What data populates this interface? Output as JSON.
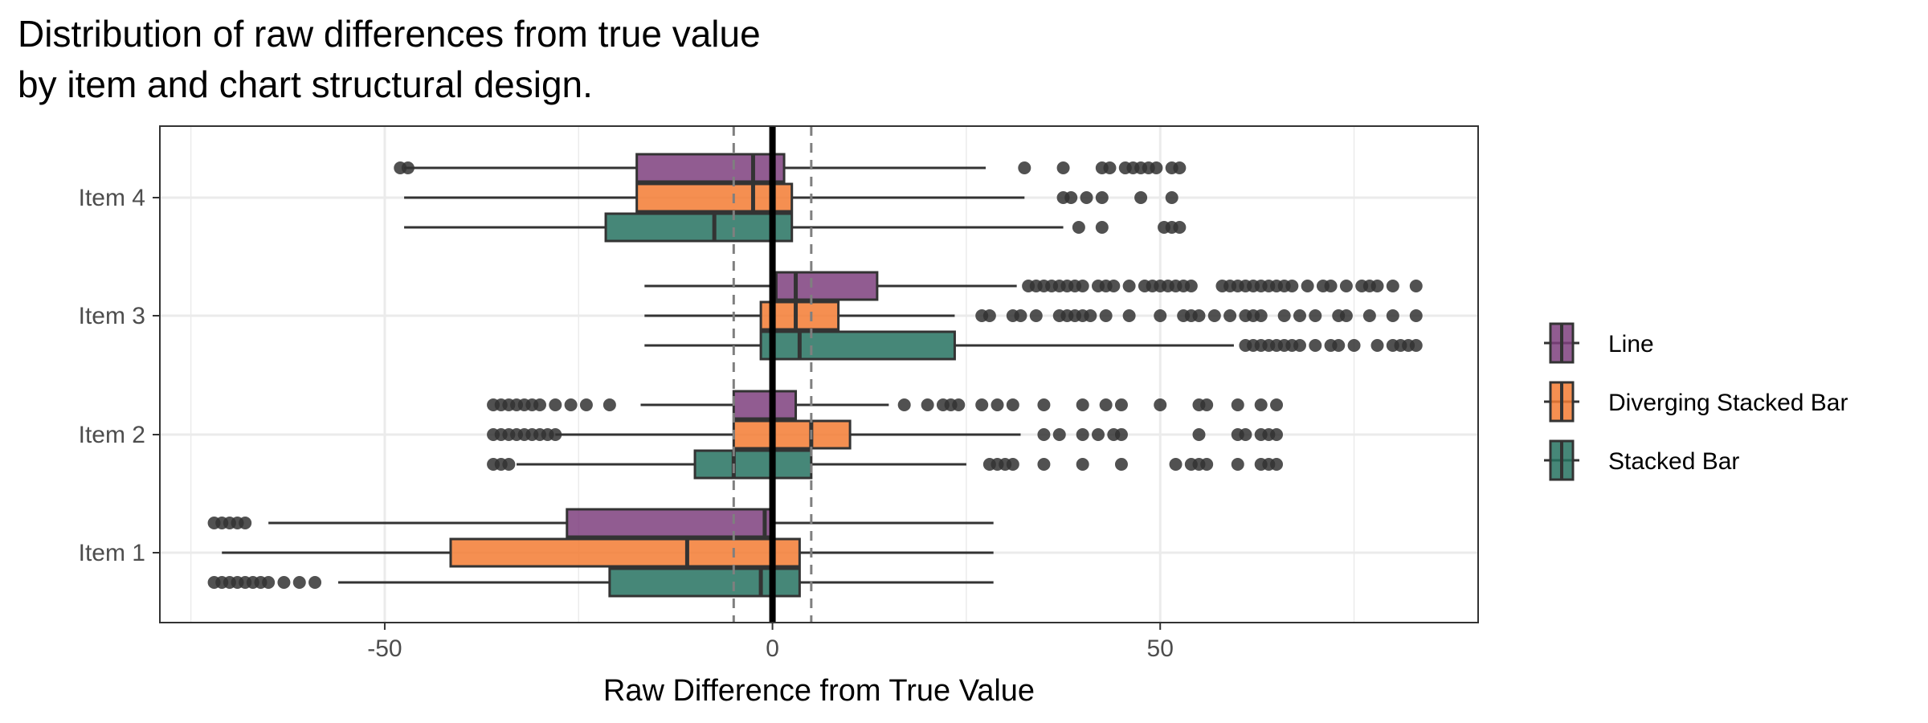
{
  "chart_data": {
    "type": "boxplot",
    "orientation": "horizontal",
    "title": [
      "Distribution of raw differences from true value",
      "by item and chart structural design."
    ],
    "xlabel": "Raw Difference from True Value",
    "ylabel": "",
    "xlim": [
      -79,
      91
    ],
    "x_ticks": [
      -50,
      0,
      50
    ],
    "x_tick_labels": [
      "-50",
      "0",
      "50"
    ],
    "grid": true,
    "legend_position": "right",
    "reference_lines": [
      {
        "x": 0,
        "style": "solid"
      },
      {
        "x": -5,
        "style": "dashed"
      },
      {
        "x": 5,
        "style": "dashed"
      }
    ],
    "categories": [
      "Item 1",
      "Item 2",
      "Item 3",
      "Item 4"
    ],
    "series": [
      {
        "name": "Line",
        "color": "#7e3f7e"
      },
      {
        "name": "Diverging Stacked Bar",
        "color": "#f37b32"
      },
      {
        "name": "Stacked Bar",
        "color": "#267260"
      }
    ],
    "boxes": [
      {
        "item": "Item 1",
        "series": "Line",
        "whisker_low": -65,
        "q1": -26.5,
        "median": -1,
        "q3": 0,
        "whisker_high": 28.5,
        "outliers": [
          -72,
          -71,
          -70,
          -69,
          -68
        ]
      },
      {
        "item": "Item 1",
        "series": "Diverging Stacked Bar",
        "whisker_low": -71,
        "q1": -41.5,
        "median": -11,
        "q3": 3.5,
        "whisker_high": 28.5,
        "outliers": []
      },
      {
        "item": "Item 1",
        "series": "Stacked Bar",
        "whisker_low": -56,
        "q1": -21,
        "median": -1.5,
        "q3": 3.5,
        "whisker_high": 28.5,
        "outliers": [
          -72,
          -71,
          -70,
          -69,
          -68,
          -67,
          -66,
          -65,
          -63,
          -61,
          -59
        ]
      },
      {
        "item": "Item 2",
        "series": "Line",
        "whisker_low": -17,
        "q1": -5,
        "median": 0,
        "q3": 3,
        "whisker_high": 15,
        "outliers": [
          -36,
          -35,
          -34,
          -33,
          -32,
          -31,
          -30,
          -28,
          -26,
          -24,
          -21,
          17,
          20,
          22,
          23,
          24,
          27,
          29,
          31,
          35,
          40,
          43,
          45,
          50,
          55,
          56,
          60,
          63,
          65
        ]
      },
      {
        "item": "Item 2",
        "series": "Diverging Stacked Bar",
        "whisker_low": -28,
        "q1": -5,
        "median": 5,
        "q3": 10,
        "whisker_high": 32,
        "outliers": [
          -36,
          -35,
          -34,
          -33,
          -32,
          -31,
          -30,
          -29,
          -28,
          35,
          37,
          40,
          42,
          44,
          45,
          55,
          60,
          61,
          63,
          64,
          65
        ]
      },
      {
        "item": "Item 2",
        "series": "Stacked Bar",
        "whisker_low": -33,
        "q1": -10,
        "median": -5,
        "q3": 5,
        "whisker_high": 25,
        "outliers": [
          -36,
          -35,
          -34,
          28,
          29,
          30,
          31,
          35,
          40,
          45,
          52,
          54,
          55,
          56,
          60,
          63,
          64,
          65
        ]
      },
      {
        "item": "Item 3",
        "series": "Line",
        "whisker_low": -16.5,
        "q1": 0.5,
        "median": 3,
        "q3": 13.5,
        "whisker_high": 31.5,
        "outliers": [
          33,
          34,
          35,
          36,
          37,
          38,
          39,
          40,
          42,
          43,
          44,
          46,
          48,
          49,
          50,
          51,
          52,
          53,
          54,
          58,
          59,
          60,
          61,
          62,
          63,
          64,
          65,
          66,
          67,
          69,
          71,
          72,
          74,
          76,
          77,
          78,
          80,
          83
        ]
      },
      {
        "item": "Item 3",
        "series": "Diverging Stacked Bar",
        "whisker_low": -16.5,
        "q1": -1.5,
        "median": 3,
        "q3": 8.5,
        "whisker_high": 23.5,
        "outliers": [
          27,
          28,
          31,
          32,
          34,
          37,
          38,
          39,
          40,
          41,
          43,
          46,
          50,
          53,
          54,
          55,
          57,
          59,
          61,
          62,
          63,
          66,
          68,
          70,
          73,
          74,
          77,
          80,
          83
        ]
      },
      {
        "item": "Item 3",
        "series": "Stacked Bar",
        "whisker_low": -16.5,
        "q1": -1.5,
        "median": 3.5,
        "q3": 23.5,
        "whisker_high": 59.5,
        "outliers": [
          61,
          62,
          63,
          64,
          65,
          66,
          67,
          68,
          70,
          72,
          73,
          75,
          78,
          80,
          81,
          82,
          83
        ]
      },
      {
        "item": "Item 4",
        "series": "Line",
        "whisker_low": -47.5,
        "q1": -17.5,
        "median": -2.5,
        "q3": 1.5,
        "whisker_high": 27.5,
        "outliers": [
          -48,
          -47,
          32.5,
          37.5,
          42.5,
          43.5,
          45.5,
          46.5,
          47.5,
          48.5,
          49.5,
          51.5,
          52.5
        ]
      },
      {
        "item": "Item 4",
        "series": "Diverging Stacked Bar",
        "whisker_low": -47.5,
        "q1": -17.5,
        "median": -2.5,
        "q3": 2.5,
        "whisker_high": 32.5,
        "outliers": [
          37.5,
          38.5,
          40.5,
          42.5,
          47.5,
          51.5
        ]
      },
      {
        "item": "Item 4",
        "series": "Stacked Bar",
        "whisker_low": -47.5,
        "q1": -21.5,
        "median": -7.5,
        "q3": 2.5,
        "whisker_high": 37.5,
        "outliers": [
          39.5,
          42.5,
          50.5,
          51.5,
          52.5
        ]
      }
    ]
  }
}
